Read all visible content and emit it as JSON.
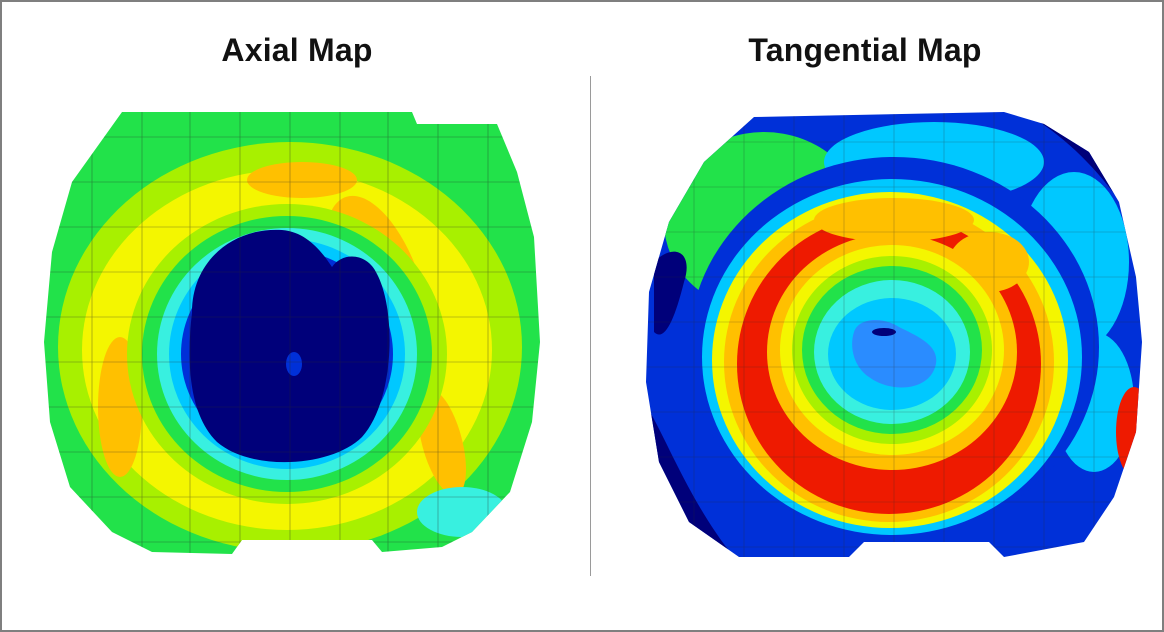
{
  "figure": {
    "left_panel": {
      "title": "Axial Map"
    },
    "right_panel": {
      "title": "Tangential Map"
    }
  },
  "colors": {
    "deep_blue": "#00007a",
    "blue": "#0030d8",
    "cyan": "#00c8ff",
    "aqua": "#38f0e0",
    "green": "#22e24a",
    "lime": "#a8f000",
    "yellow": "#f4f600",
    "orange": "#ffc000",
    "red": "#ee1a00",
    "grid": "#2a2a2a"
  }
}
